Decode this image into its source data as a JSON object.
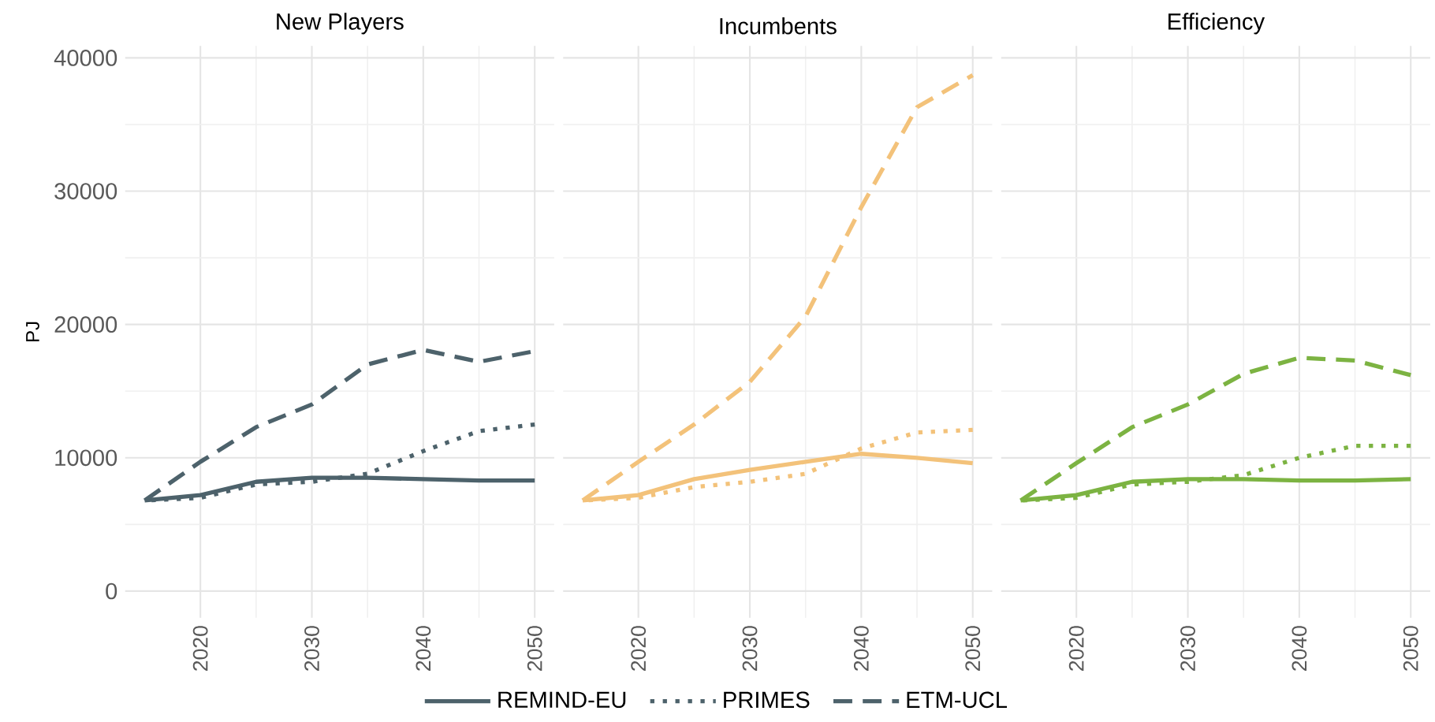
{
  "chart_data": [
    {
      "type": "line",
      "title": "New Players",
      "ylabel": "PJ",
      "x": [
        2015,
        2020,
        2025,
        2030,
        2035,
        2040,
        2045,
        2050
      ],
      "xlim": [
        2013.25,
        2051.75
      ],
      "xticks": [
        2020,
        2030,
        2040,
        2050
      ],
      "ylim": [
        -2000,
        40900
      ],
      "yticks": [
        0,
        10000,
        20000,
        30000,
        40000
      ],
      "grid": true,
      "legend": "bottom",
      "series": [
        {
          "name": "REMIND-EU",
          "color": "#4d626b",
          "line_style": "solid",
          "values": [
            6800,
            7200,
            8200,
            8500,
            8500,
            8400,
            8300,
            8300
          ]
        },
        {
          "name": "PRIMES",
          "color": "#4d626b",
          "line_style": "dotted",
          "values": [
            6800,
            7000,
            8000,
            8200,
            8800,
            10500,
            12000,
            12500
          ]
        },
        {
          "name": "ETM-UCL",
          "color": "#4d626b",
          "line_style": "dashed",
          "values": [
            6800,
            9700,
            12300,
            14000,
            17000,
            18100,
            17200,
            18000
          ]
        }
      ]
    },
    {
      "type": "line",
      "title": "Incumbents",
      "x": [
        2015,
        2020,
        2025,
        2030,
        2035,
        2040,
        2045,
        2050
      ],
      "xlim": [
        2013.25,
        2051.75
      ],
      "xticks": [
        2020,
        2030,
        2040,
        2050
      ],
      "ylim": [
        -2000,
        40900
      ],
      "yticks": [
        0,
        10000,
        20000,
        30000,
        40000
      ],
      "grid": true,
      "tick_labels": "x",
      "series": [
        {
          "color": "#f3c27a",
          "line_style": "solid",
          "values": [
            6800,
            7200,
            8400,
            9100,
            9700,
            10300,
            10000,
            9600
          ]
        },
        {
          "color": "#f3c27a",
          "line_style": "dotted",
          "values": [
            6800,
            7000,
            7800,
            8200,
            8800,
            10700,
            11900,
            12100
          ]
        },
        {
          "color": "#f3c27a",
          "line_style": "dashed",
          "values": [
            6800,
            9700,
            12500,
            15700,
            20600,
            28800,
            36300,
            38700
          ]
        }
      ]
    },
    {
      "type": "line",
      "title": "Efficiency",
      "x": [
        2015,
        2020,
        2025,
        2030,
        2035,
        2040,
        2045,
        2050
      ],
      "xlim": [
        2013.25,
        2051.75
      ],
      "xticks": [
        2020,
        2030,
        2040,
        2050
      ],
      "ylim": [
        -2000,
        40900
      ],
      "yticks": [
        0,
        10000,
        20000,
        30000,
        40000
      ],
      "grid": true,
      "tick_labels": "x",
      "series": [
        {
          "color": "#7cb342",
          "line_style": "solid",
          "values": [
            6800,
            7200,
            8200,
            8400,
            8400,
            8300,
            8300,
            8400
          ]
        },
        {
          "color": "#7cb342",
          "line_style": "dotted",
          "values": [
            6800,
            7000,
            8000,
            8200,
            8700,
            10000,
            10900,
            10900
          ]
        },
        {
          "color": "#7cb342",
          "line_style": "dashed",
          "values": [
            6800,
            9600,
            12300,
            14000,
            16300,
            17500,
            17300,
            16200
          ]
        }
      ]
    }
  ]
}
